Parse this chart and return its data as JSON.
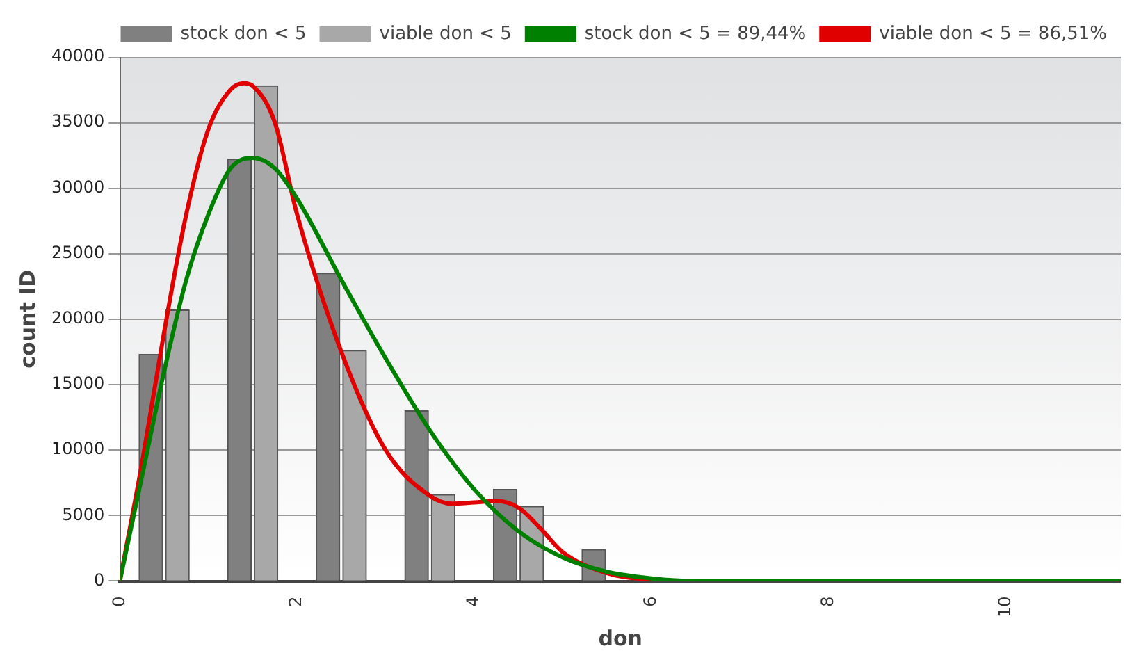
{
  "chart_data": {
    "type": "bar",
    "xlabel": "don",
    "ylabel": "count ID",
    "xlim": [
      0,
      11.3
    ],
    "xticks": [
      0,
      2,
      4,
      6,
      8,
      10
    ],
    "ylim": [
      0,
      40000
    ],
    "yticks": [
      0,
      5000,
      10000,
      15000,
      20000,
      25000,
      30000,
      35000,
      40000
    ],
    "grid": "y",
    "legend": "top right",
    "series": [
      {
        "name": "stock don < 5",
        "color": "#808080",
        "x": [
          0.35,
          1.35,
          2.35,
          3.35,
          4.35,
          5.35
        ],
        "values": [
          17300,
          32200,
          23500,
          13000,
          7000,
          2400
        ]
      },
      {
        "name": "viable don < 5",
        "color": "#a8a8a8",
        "x": [
          0.65,
          1.65,
          2.65,
          3.65,
          4.65
        ],
        "values": [
          20700,
          37800,
          17600,
          6600,
          5700
        ]
      },
      {
        "name": "stock don < 5 = 89,44%",
        "type": "line",
        "color": "#008000",
        "x": [
          0,
          0.25,
          0.5,
          0.75,
          1,
          1.25,
          1.5,
          1.75,
          2,
          2.5,
          3,
          3.5,
          4,
          4.5,
          5,
          5.5,
          6,
          6.5,
          11.3
        ],
        "values": [
          0,
          8000,
          16000,
          23000,
          28000,
          31500,
          32300,
          31500,
          29200,
          23000,
          17000,
          11500,
          7000,
          3800,
          1800,
          700,
          200,
          0,
          0
        ]
      },
      {
        "name": "viable don < 5 = 86,51%",
        "type": "line",
        "color": "#e00000",
        "x": [
          0,
          0.25,
          0.5,
          0.75,
          1,
          1.25,
          1.4,
          1.5,
          1.75,
          2,
          2.5,
          3,
          3.5,
          3.75,
          4,
          4.25,
          4.5,
          4.75,
          5,
          5.5,
          6,
          6.5,
          11.3
        ],
        "values": [
          0,
          9000,
          19000,
          28000,
          34500,
          37500,
          38000,
          37800,
          35000,
          28000,
          17500,
          10000,
          6500,
          5900,
          6000,
          6100,
          5600,
          4000,
          2200,
          600,
          100,
          0,
          0
        ]
      }
    ]
  }
}
